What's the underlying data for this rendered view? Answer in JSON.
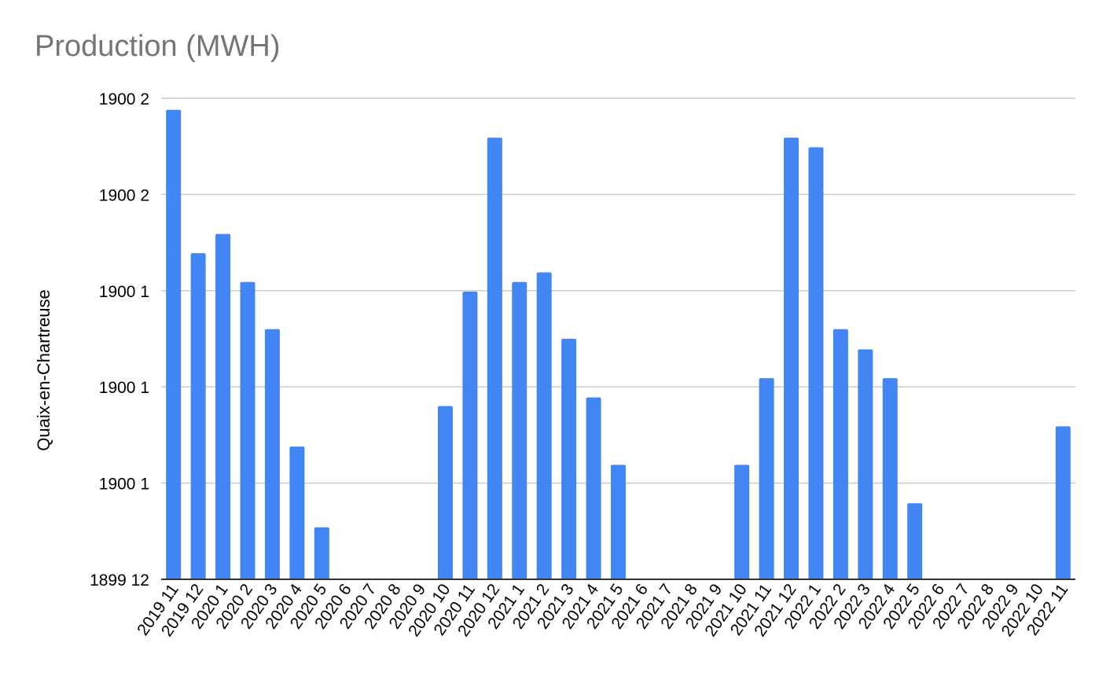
{
  "chart_data": {
    "type": "bar",
    "title": "Production (MWH)",
    "xlabel": "",
    "ylabel": "Quaix-en-Chartreuse",
    "y_tick_labels": [
      "1899 12",
      "1900 1",
      "1900 1",
      "1900 1",
      "1900 2",
      "1900 2"
    ],
    "ylim": [
      0,
      5
    ],
    "grid": true,
    "legend": "none",
    "categories": [
      "2019 11",
      "2019 12",
      "2020 1",
      "2020 2",
      "2020 3",
      "2020 4",
      "2020 5",
      "2020 6",
      "2020 7",
      "2020 8",
      "2020 9",
      "2020 10",
      "2020 11",
      "2020 12",
      "2021 1",
      "2021 2",
      "2021 3",
      "2021 4",
      "2021 5",
      "2021 6",
      "2021 7",
      "2021 8",
      "2021 9",
      "2021 10",
      "2021 11",
      "2021 12",
      "2022 1",
      "2022 2",
      "2022 3",
      "2022 4",
      "2022 5",
      "2022 6",
      "2022 7",
      "2022 8",
      "2022 9",
      "2022 10",
      "2022 11"
    ],
    "values": [
      4.88,
      3.39,
      3.59,
      3.09,
      2.6,
      1.38,
      0.54,
      0,
      0,
      0,
      0,
      1.8,
      2.99,
      4.59,
      3.09,
      3.19,
      2.5,
      1.89,
      1.19,
      0,
      0,
      0,
      0,
      1.19,
      2.09,
      4.59,
      4.49,
      2.6,
      2.39,
      2.09,
      0.79,
      0,
      0,
      0,
      0,
      0,
      1.59
    ],
    "colors": {
      "bar": "#4285f4",
      "grid": "#cccccc",
      "axis": "#333333"
    }
  }
}
